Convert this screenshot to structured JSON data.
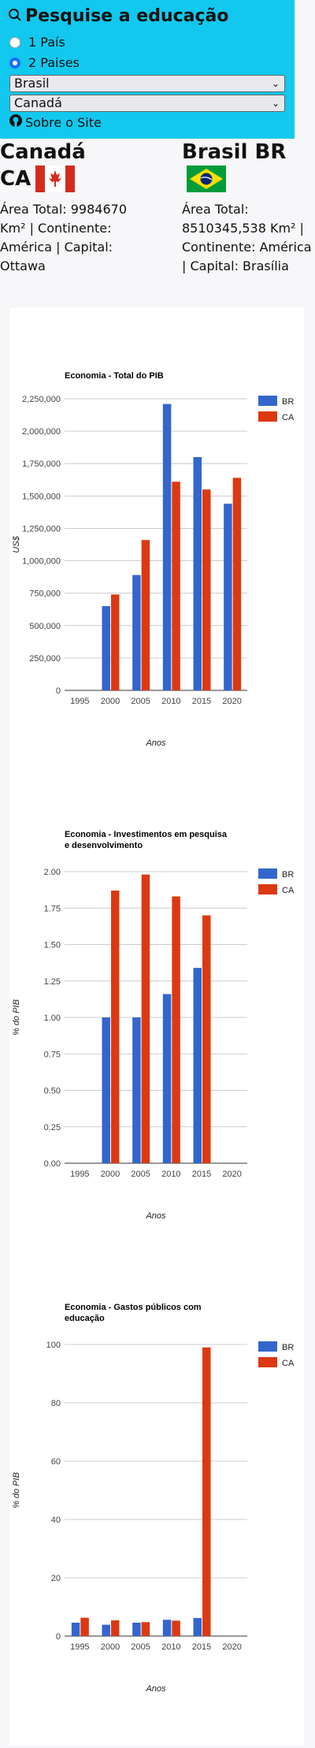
{
  "header": {
    "title": "Pesquise a educação",
    "radio_one": "1 País",
    "radio_two": "2 Paises",
    "select_one": "Brasil",
    "select_two": "Canadá",
    "about": "Sobre o Site",
    "bg_color": "#12c8ee"
  },
  "countries": [
    {
      "name": "Canadá",
      "code": "CA",
      "info": "Área Total: 9984670 Km² | Continente: América | Capital: Ottawa",
      "flag_icon": "canada-flag-icon"
    },
    {
      "name": "Brasil BR",
      "code": "",
      "info": "Área Total: 8510345,538 Km² | Continente: América | Capital: Brasília",
      "flag_icon": "brazil-flag-icon"
    }
  ],
  "chart_data": [
    {
      "type": "bar",
      "title": "Economia - Total do PIB",
      "xlabel": "Anos",
      "ylabel": "US$",
      "categories": [
        "1995",
        "2000",
        "2005",
        "2010",
        "2015",
        "2020"
      ],
      "ylim": [
        0,
        2250000
      ],
      "yticks": [
        "0",
        "250,000",
        "500,000",
        "750,000",
        "1,000,000",
        "1,250,000",
        "1,500,000",
        "1,750,000",
        "2,000,000",
        "2,250,000"
      ],
      "series": [
        {
          "name": "BR",
          "color": "#3366cc",
          "values": [
            null,
            650000,
            890000,
            2210000,
            1800000,
            1440000
          ]
        },
        {
          "name": "CA",
          "color": "#dc3912",
          "values": [
            null,
            740000,
            1160000,
            1610000,
            1550000,
            1640000
          ]
        }
      ],
      "legend": "right"
    },
    {
      "type": "bar",
      "title": "Economia - Investimentos em pesquisa e desenvolvimento",
      "xlabel": "Anos",
      "ylabel": "% do PIB",
      "categories": [
        "1995",
        "2000",
        "2005",
        "2010",
        "2015",
        "2020"
      ],
      "ylim": [
        0,
        2
      ],
      "yticks": [
        "0.00",
        "0.25",
        "0.50",
        "0.75",
        "1.00",
        "1.25",
        "1.50",
        "1.75",
        "2.00"
      ],
      "series": [
        {
          "name": "BR",
          "color": "#3366cc",
          "values": [
            null,
            1.0,
            1.0,
            1.16,
            1.34,
            null
          ]
        },
        {
          "name": "CA",
          "color": "#dc3912",
          "values": [
            null,
            1.87,
            1.98,
            1.83,
            1.7,
            null
          ]
        }
      ],
      "legend": "right"
    },
    {
      "type": "bar",
      "title": "Economia - Gastos públicos com educação",
      "xlabel": "Anos",
      "ylabel": "% do PIB",
      "categories": [
        "1995",
        "2000",
        "2005",
        "2010",
        "2015",
        "2020"
      ],
      "ylim": [
        0,
        100
      ],
      "yticks": [
        "0",
        "20",
        "40",
        "60",
        "80",
        "100"
      ],
      "series": [
        {
          "name": "BR",
          "color": "#3366cc",
          "values": [
            4.6,
            3.9,
            4.6,
            5.6,
            6.2,
            null
          ]
        },
        {
          "name": "CA",
          "color": "#dc3912",
          "values": [
            6.3,
            5.4,
            4.8,
            5.3,
            99,
            null
          ]
        }
      ],
      "legend": "right"
    }
  ]
}
